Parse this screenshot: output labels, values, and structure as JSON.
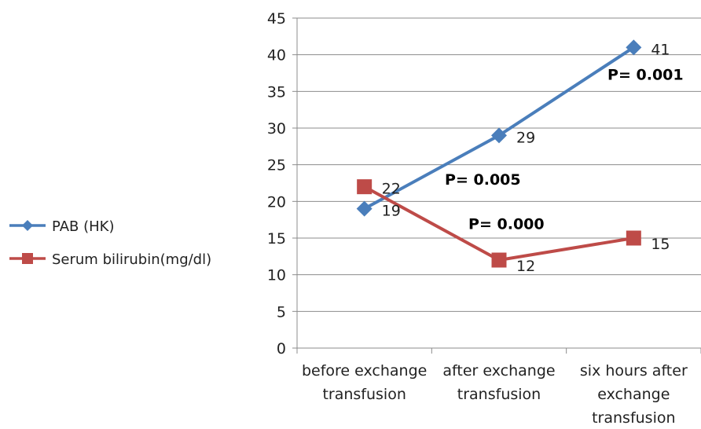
{
  "chart_data": {
    "type": "line",
    "categories": [
      [
        "before exchange",
        "transfusion"
      ],
      [
        "after exchange",
        "transfusion"
      ],
      [
        "six hours after",
        "exchange",
        "transfusion"
      ]
    ],
    "ylim": [
      0,
      45
    ],
    "yticks": [
      0,
      5,
      10,
      15,
      20,
      25,
      30,
      35,
      40,
      45
    ],
    "grid": true,
    "legend_position": "left",
    "series": [
      {
        "name": "PAB (HK)",
        "values": [
          19,
          29,
          41
        ],
        "color": "#4a7ebb",
        "marker": "diamond"
      },
      {
        "name": "Serum bilirubin(mg/dl)",
        "values": [
          22,
          12,
          15
        ],
        "color": "#be4b48",
        "marker": "square"
      }
    ],
    "annotations": [
      {
        "text": "P= 0.005"
      },
      {
        "text": "P= 0.001"
      },
      {
        "text": "P= 0.000"
      }
    ]
  }
}
